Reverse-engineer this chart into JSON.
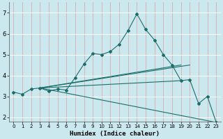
{
  "xlabel": "Humidex (Indice chaleur)",
  "background_color": "#cce8ef",
  "grid_color_major": "#e8a0a0",
  "grid_color_minor": "#ffffff",
  "line_color": "#1a6e6a",
  "xlim": [
    -0.5,
    23.5
  ],
  "ylim": [
    1.8,
    7.5
  ],
  "yticks": [
    2,
    3,
    4,
    5,
    6,
    7
  ],
  "xticks": [
    0,
    1,
    2,
    3,
    4,
    5,
    6,
    7,
    8,
    9,
    10,
    11,
    12,
    13,
    14,
    15,
    16,
    17,
    18,
    19,
    20,
    21,
    22,
    23
  ],
  "main_x": [
    0,
    1,
    2,
    3,
    4,
    5,
    6,
    7,
    8,
    9,
    10,
    11,
    12,
    13,
    14,
    15,
    16,
    17,
    18,
    19,
    20,
    21,
    22,
    23
  ],
  "main_y": [
    3.2,
    3.1,
    3.35,
    3.4,
    3.25,
    3.35,
    3.3,
    3.9,
    4.55,
    5.05,
    5.0,
    5.15,
    5.5,
    6.15,
    6.95,
    6.2,
    5.7,
    5.0,
    4.5,
    3.75,
    3.8,
    2.65,
    3.0,
    1.75
  ],
  "aux_lines": [
    {
      "x": [
        3,
        23
      ],
      "y": [
        3.4,
        1.75
      ]
    },
    {
      "x": [
        3,
        19
      ],
      "y": [
        3.4,
        3.75
      ]
    },
    {
      "x": [
        3,
        20
      ],
      "y": [
        3.4,
        4.5
      ]
    },
    {
      "x": [
        3,
        19
      ],
      "y": [
        3.4,
        4.5
      ]
    }
  ]
}
